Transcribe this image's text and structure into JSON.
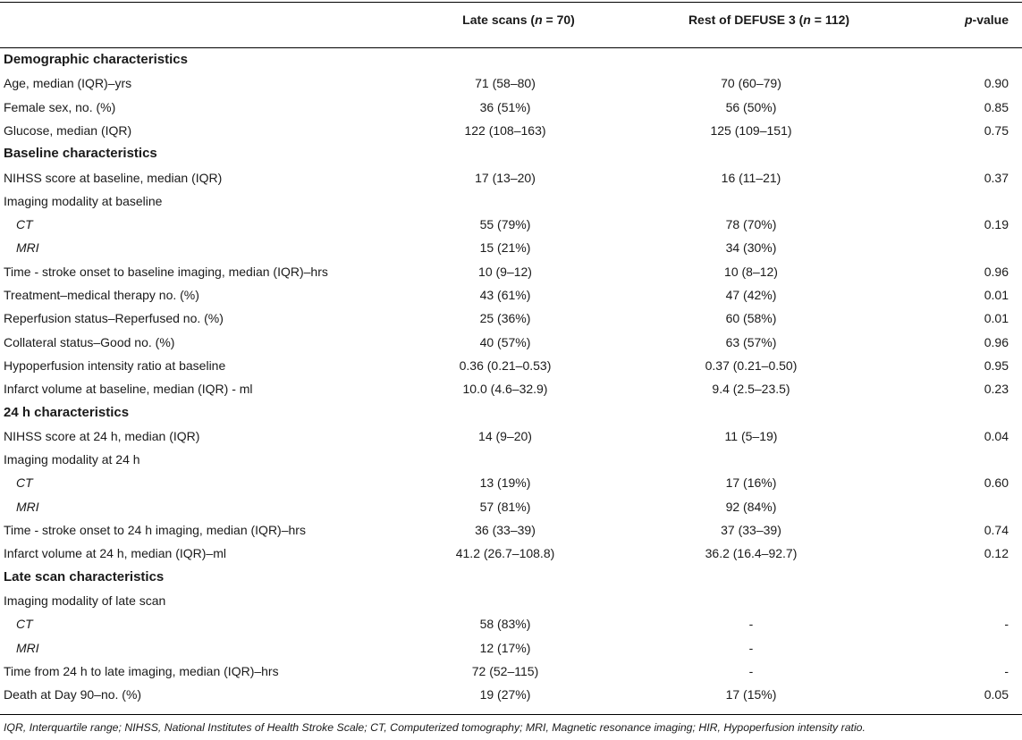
{
  "header": {
    "col1": "Late scans (n = 70)",
    "col2": "Rest of DEFUSE 3 (n = 112)",
    "col3": "p-value"
  },
  "rows": [
    {
      "type": "section",
      "label": "Demographic characteristics"
    },
    {
      "type": "data",
      "label": "Age, median (IQR)–yrs",
      "late": "71 (58–80)",
      "rest": "70 (60–79)",
      "p": "0.90"
    },
    {
      "type": "data",
      "label": "Female sex, no. (%)",
      "late": "36 (51%)",
      "rest": "56 (50%)",
      "p": "0.85"
    },
    {
      "type": "data",
      "label": "Glucose, median (IQR)",
      "late": "122 (108–163)",
      "rest": "125 (109–151)",
      "p": "0.75"
    },
    {
      "type": "section",
      "label": "Baseline characteristics"
    },
    {
      "type": "data",
      "label": "NIHSS score at baseline, median (IQR)",
      "late": "17 (13–20)",
      "rest": "16 (11–21)",
      "p": "0.37"
    },
    {
      "type": "data",
      "label": "Imaging modality at baseline",
      "late": "",
      "rest": "",
      "p": ""
    },
    {
      "type": "sub",
      "label": "CT",
      "late": "55 (79%)",
      "rest": "78 (70%)",
      "p": "0.19"
    },
    {
      "type": "sub",
      "label": "MRI",
      "late": "15 (21%)",
      "rest": "34 (30%)",
      "p": ""
    },
    {
      "type": "data",
      "label": "Time - stroke onset to baseline imaging, median (IQR)–hrs",
      "late": "10 (9–12)",
      "rest": "10 (8–12)",
      "p": "0.96"
    },
    {
      "type": "data",
      "label": "Treatment–medical therapy no. (%)",
      "late": "43 (61%)",
      "rest": "47 (42%)",
      "p": "0.01"
    },
    {
      "type": "data",
      "label": "Reperfusion status–Reperfused no. (%)",
      "late": "25 (36%)",
      "rest": "60 (58%)",
      "p": "0.01"
    },
    {
      "type": "data",
      "label": "Collateral status–Good no. (%)",
      "late": "40 (57%)",
      "rest": "63 (57%)",
      "p": "0.96"
    },
    {
      "type": "data",
      "label": "Hypoperfusion intensity ratio at baseline",
      "late": "0.36 (0.21–0.53)",
      "rest": "0.37 (0.21–0.50)",
      "p": "0.95"
    },
    {
      "type": "data",
      "label": "Infarct volume at baseline, median (IQR) - ml",
      "late": "10.0 (4.6–32.9)",
      "rest": "9.4 (2.5–23.5)",
      "p": "0.23"
    },
    {
      "type": "section",
      "label": "24 h characteristics"
    },
    {
      "type": "data",
      "label": "NIHSS score at 24 h, median (IQR)",
      "late": "14 (9–20)",
      "rest": "11 (5–19)",
      "p": "0.04"
    },
    {
      "type": "data",
      "label": "Imaging modality at 24 h",
      "late": "",
      "rest": "",
      "p": ""
    },
    {
      "type": "sub",
      "label": "CT",
      "late": "13 (19%)",
      "rest": "17 (16%)",
      "p": "0.60"
    },
    {
      "type": "sub",
      "label": "MRI",
      "late": "57 (81%)",
      "rest": "92 (84%)",
      "p": ""
    },
    {
      "type": "data",
      "label": "Time - stroke onset to 24 h imaging, median (IQR)–hrs",
      "late": "36 (33–39)",
      "rest": "37 (33–39)",
      "p": "0.74"
    },
    {
      "type": "data",
      "label": "Infarct volume at 24 h, median (IQR)–ml",
      "late": "41.2 (26.7–108.8)",
      "rest": "36.2 (16.4–92.7)",
      "p": "0.12"
    },
    {
      "type": "section",
      "label": "Late scan characteristics"
    },
    {
      "type": "data",
      "label": "Imaging modality of late scan",
      "late": "",
      "rest": "",
      "p": ""
    },
    {
      "type": "sub",
      "label": "CT",
      "late": "58 (83%)",
      "rest": "-",
      "p": "-"
    },
    {
      "type": "sub",
      "label": "MRI",
      "late": "12 (17%)",
      "rest": "-",
      "p": ""
    },
    {
      "type": "data",
      "label": "Time from 24 h to late imaging, median (IQR)–hrs",
      "late": "72 (52–115)",
      "rest": "-",
      "p": "-"
    },
    {
      "type": "data",
      "label": "Death at Day 90–no. (%)",
      "late": "19 (27%)",
      "rest": "17 (15%)",
      "p": "0.05"
    }
  ],
  "footnote": "IQR, Interquartile range; NIHSS, National Institutes of Health Stroke Scale; CT, Computerized tomography; MRI, Magnetic resonance imaging; HIR, Hypoperfusion intensity ratio."
}
